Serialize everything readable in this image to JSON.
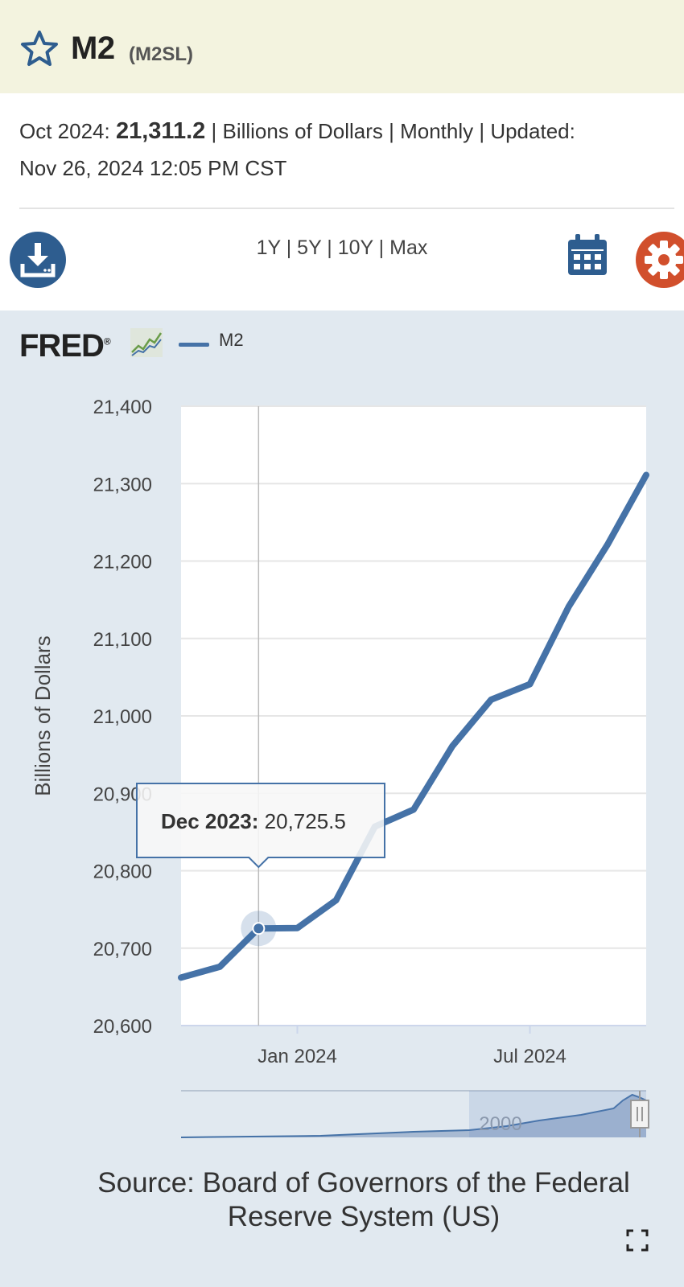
{
  "header": {
    "title": "M2",
    "code": "(M2SL)"
  },
  "meta": {
    "period": "Oct 2024:",
    "value": "21,311.2",
    "details": "| Billions of Dollars | Monthly | Updated:",
    "updated": "Nov 26, 2024 12:05 PM CST"
  },
  "toolbar": {
    "ranges": [
      "1Y",
      "5Y",
      "10Y",
      "Max"
    ],
    "separator": " | "
  },
  "chart_header": {
    "logo": "FRED",
    "logo_mark": "®"
  },
  "source": {
    "line1": "Source: Board of Governors of the Federal",
    "line2": "Reserve System (US)"
  },
  "colors": {
    "series": "#4572a7",
    "header_bg": "#f3f3df",
    "chart_bg": "#e1e9f0",
    "gear": "#d14f2c",
    "icon_blue": "#2e5d8f"
  },
  "icons": [
    "star-icon",
    "download-icon",
    "calendar-icon",
    "gear-icon",
    "fred-trend-icon",
    "fullscreen-icon"
  ],
  "chart_data": {
    "type": "line",
    "title": "",
    "xlabel": "",
    "ylabel": "Billions of Dollars",
    "ylim": [
      20600,
      21400
    ],
    "yticks": [
      20600,
      20700,
      20800,
      20900,
      21000,
      21100,
      21200,
      21300,
      21400
    ],
    "ytick_labels": [
      "20,600",
      "20,700",
      "20,800",
      "20,900",
      "21,000",
      "21,100",
      "21,200",
      "21,300",
      "21,400"
    ],
    "xlim": [
      "2023-10",
      "2024-10"
    ],
    "xticks": [
      "2024-01",
      "2024-07"
    ],
    "xtick_labels": [
      "Jan 2024",
      "Jul 2024"
    ],
    "grid": true,
    "legend": "top-left",
    "series": [
      {
        "name": "M2",
        "x": [
          "2023-10",
          "2023-11",
          "2023-12",
          "2024-01",
          "2024-02",
          "2024-03",
          "2024-04",
          "2024-05",
          "2024-06",
          "2024-07",
          "2024-08",
          "2024-09",
          "2024-10"
        ],
        "values": [
          20662,
          20676,
          20725.5,
          20726,
          20762,
          20857,
          20879,
          20961,
          21021,
          21041,
          21141,
          21221,
          21311.2
        ]
      }
    ],
    "tooltip": {
      "label": "Dec 2023:",
      "value": "20,725.5"
    },
    "navigator": {
      "label": "2000"
    }
  }
}
